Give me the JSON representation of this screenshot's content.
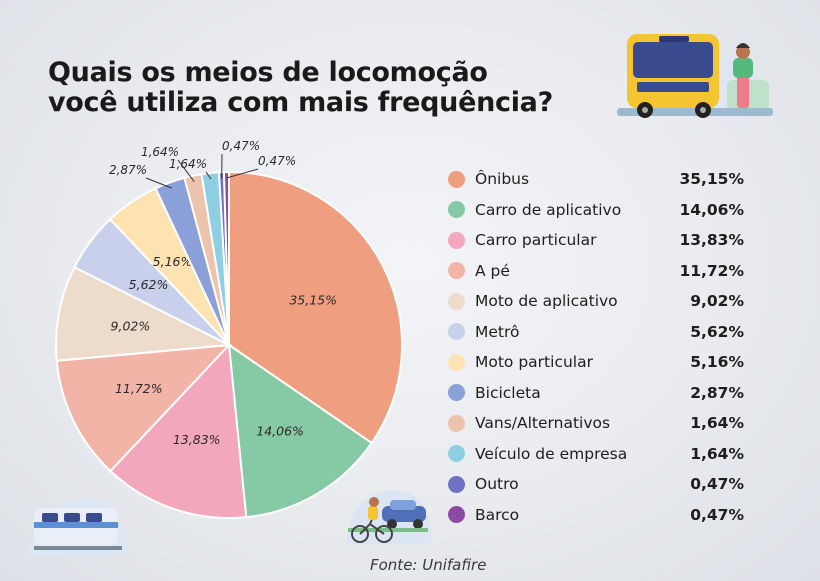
{
  "title": {
    "line1": "Quais os meios de locomoção",
    "line2": "você utiliza com mais frequência?"
  },
  "chart_data": {
    "type": "pie",
    "title": "Quais os meios de locomoção você utiliza com mais frequência?",
    "categories": [
      "Ônibus",
      "Carro de aplicativo",
      "Carro particular",
      "A pé",
      "Moto de aplicativo",
      "Metrô",
      "Moto particular",
      "Bicicleta",
      "Vans/Alternativos",
      "Veículo de empresa",
      "Outro",
      "Barco"
    ],
    "values": [
      35.15,
      14.06,
      13.83,
      11.72,
      9.02,
      5.62,
      5.16,
      2.87,
      1.64,
      1.64,
      0.47,
      0.47
    ],
    "labels": [
      "35,15%",
      "14,06%",
      "13,83%",
      "11,72%",
      "9,02%",
      "5,62%",
      "5,16%",
      "2,87%",
      "1,64%",
      "1,64%",
      "0,47%",
      "0,47%"
    ],
    "colors": [
      "#ef9f80",
      "#86c9a5",
      "#f3a7bc",
      "#f1b4a6",
      "#eddccb",
      "#c9d0ec",
      "#fde3b2",
      "#8b9fd8",
      "#ecc4ad",
      "#8ecfe4",
      "#6f71c3",
      "#8d4aa3"
    ],
    "legend": "right"
  },
  "source": "Fonte: Unifafire"
}
